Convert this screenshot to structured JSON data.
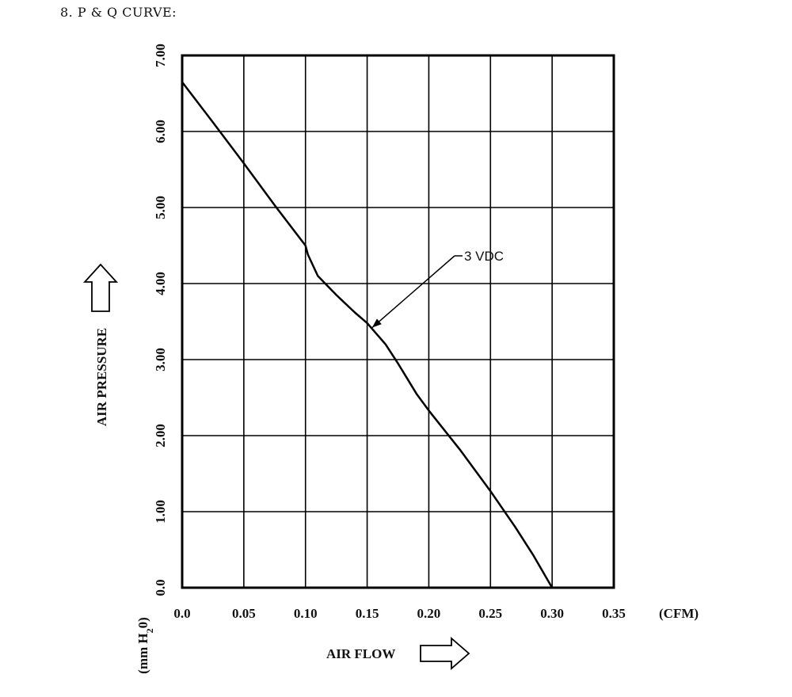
{
  "heading": "8. P & Q CURVE:",
  "chart_data": {
    "type": "line",
    "xlabel": "AIR FLOW",
    "ylabel": "AIR PRESSURE",
    "x_unit": "(CFM)",
    "y_unit": [
      "(mm H",
      "2",
      "0)"
    ],
    "xlim": [
      0,
      0.35
    ],
    "ylim": [
      0,
      7
    ],
    "x_ticks": [
      "0.0",
      "0.05",
      "0.10",
      "0.15",
      "0.20",
      "0.25",
      "0.30",
      "0.35"
    ],
    "y_ticks": [
      "0.0",
      "1.00",
      "2.00",
      "3.00",
      "4.00",
      "5.00",
      "6.00",
      "7.00"
    ],
    "grid": true,
    "series": [
      {
        "name": "3 VDC",
        "x": [
          0,
          0.025,
          0.05,
          0.075,
          0.1,
          0.102,
          0.11,
          0.125,
          0.14,
          0.15,
          0.165,
          0.175,
          0.19,
          0.2,
          0.225,
          0.25,
          0.27,
          0.285,
          0.3
        ],
        "y": [
          6.65,
          6.12,
          5.58,
          5.03,
          4.5,
          4.38,
          4.1,
          3.85,
          3.62,
          3.48,
          3.2,
          2.95,
          2.55,
          2.33,
          1.82,
          1.27,
          0.8,
          0.42,
          0.0
        ]
      }
    ],
    "annotation": {
      "text": "3 VDC",
      "x": 0.154,
      "y": 3.42
    },
    "color": "#000000"
  }
}
